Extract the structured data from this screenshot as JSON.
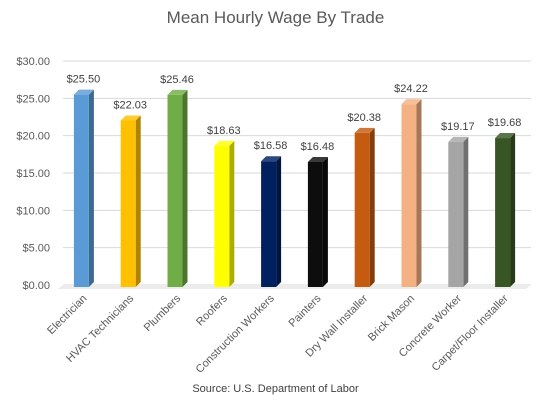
{
  "chart_data": {
    "type": "bar",
    "title": "Mean Hourly Wage By Trade",
    "source": "Source: U.S. Department of Labor",
    "xlabel": "",
    "ylabel": "",
    "ylim": [
      0,
      30
    ],
    "y_ticks": [
      0,
      5,
      10,
      15,
      20,
      25,
      30
    ],
    "y_tick_labels": [
      "$0.00",
      "$5.00",
      "$10.00",
      "$15.00",
      "$20.00",
      "$25.00",
      "$30.00"
    ],
    "grid": true,
    "legend": "none",
    "categories": [
      "Electrician",
      "HVAC Technicians",
      "Plumbers",
      "Roofers",
      "Construction Workers",
      "Painters",
      "Dry Wall Installer",
      "Brick Mason",
      "Concrete Worker",
      "Carpet/Floor Installer"
    ],
    "values": [
      25.5,
      22.03,
      25.46,
      18.63,
      16.58,
      16.48,
      20.38,
      24.22,
      19.17,
      19.68
    ],
    "value_labels": [
      "$25.50",
      "$22.03",
      "$25.46",
      "$18.63",
      "$16.58",
      "$16.48",
      "$20.38",
      "$24.22",
      "$19.17",
      "$19.68"
    ],
    "colors": [
      "#5b9bd5",
      "#ffc000",
      "#70ad47",
      "#ffff00",
      "#002060",
      "#0d0d0d",
      "#c55a11",
      "#f4b183",
      "#a5a5a5",
      "#375623"
    ]
  }
}
